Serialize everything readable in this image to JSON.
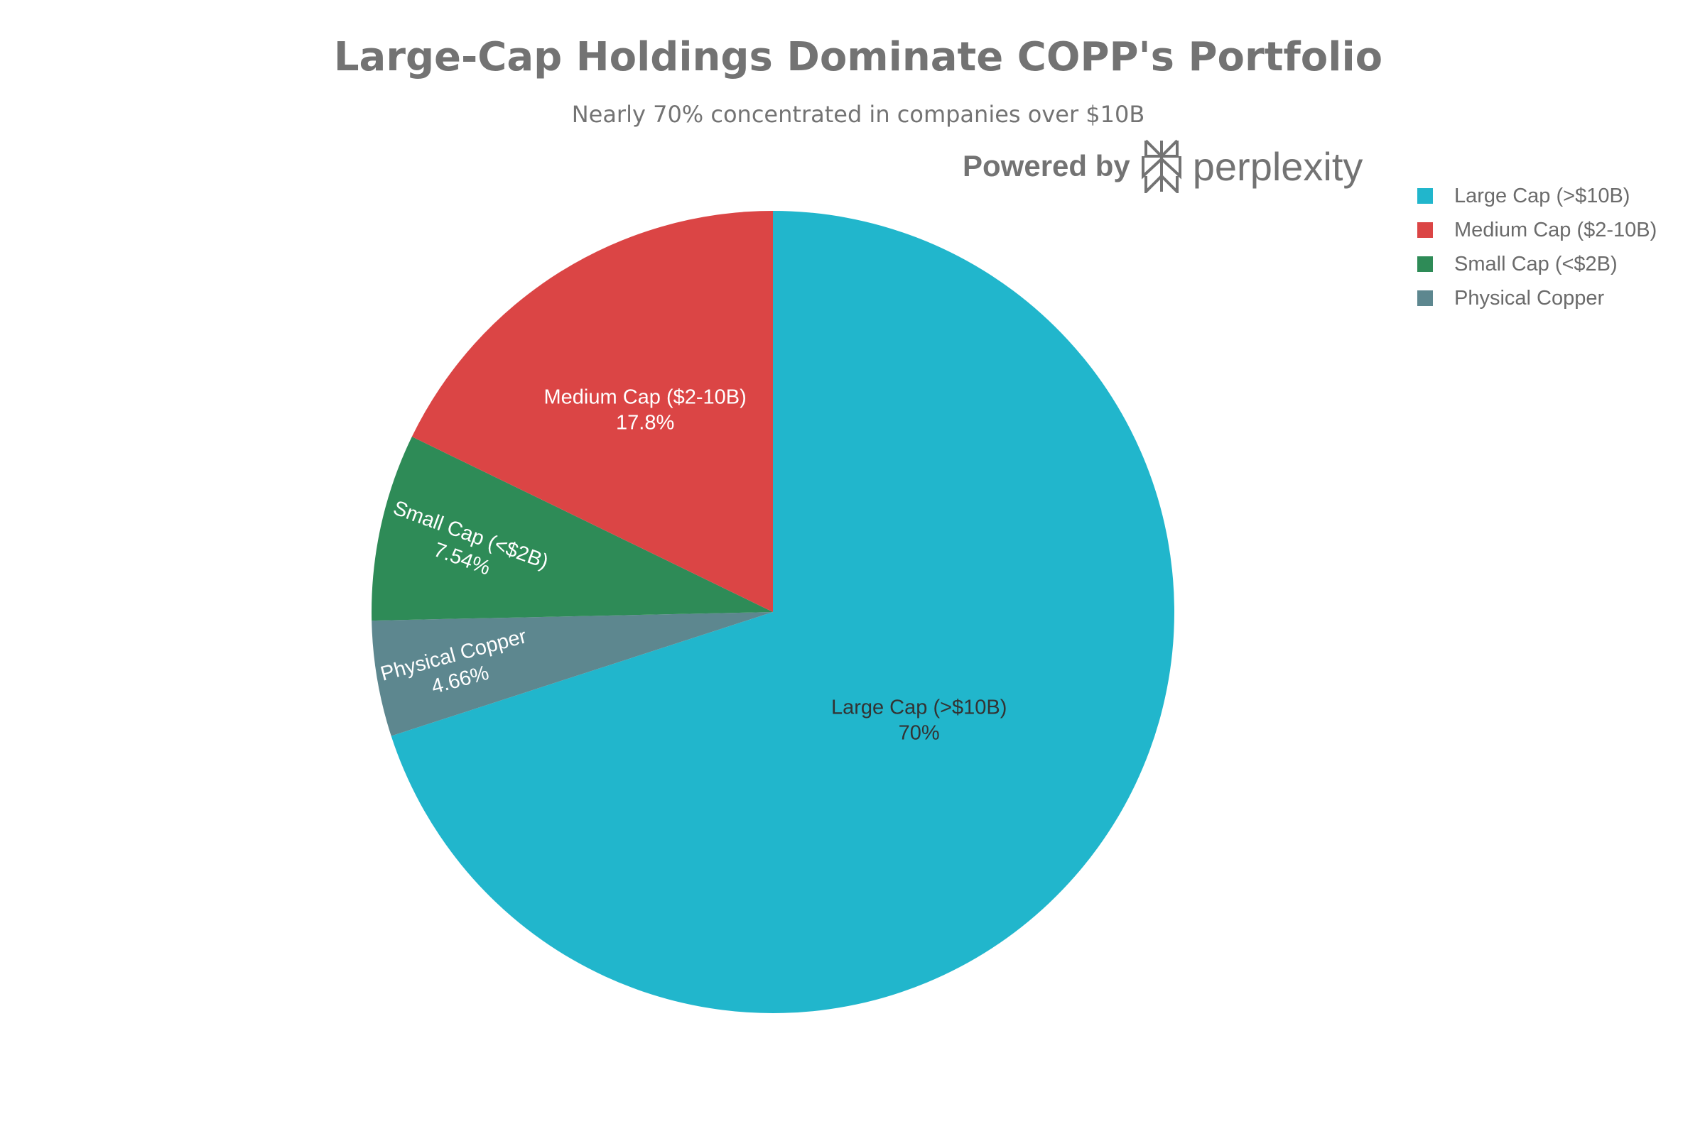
{
  "chart_data": {
    "type": "pie",
    "title": "Large-Cap Holdings Dominate COPP's Portfolio",
    "subtitle": "Nearly 70% concentrated in companies over $10B",
    "direction": "clockwise",
    "start": "top",
    "legend_position": "top-right",
    "slices": [
      {
        "label": "Large Cap (>$10B)",
        "value": 70,
        "pct_text": "70%",
        "color": "#21b6cc",
        "text_color": "#333333"
      },
      {
        "label": "Physical Copper",
        "value": 4.66,
        "pct_text": "4.66%",
        "color": "#5d878f",
        "text_color": "#ffffff"
      },
      {
        "label": "Small Cap (<$2B)",
        "value": 7.54,
        "pct_text": "7.54%",
        "color": "#2e8b57",
        "text_color": "#ffffff"
      },
      {
        "label": "Medium Cap ($2-10B)",
        "value": 17.8,
        "pct_text": "17.8%",
        "color": "#db4545",
        "text_color": "#ffffff"
      }
    ],
    "legend": [
      "Large Cap (>$10B)",
      "Medium Cap ($2-10B)",
      "Small Cap (<$2B)",
      "Physical Copper"
    ]
  },
  "branding": {
    "powered_by": "Powered by",
    "brand": "perplexity"
  }
}
